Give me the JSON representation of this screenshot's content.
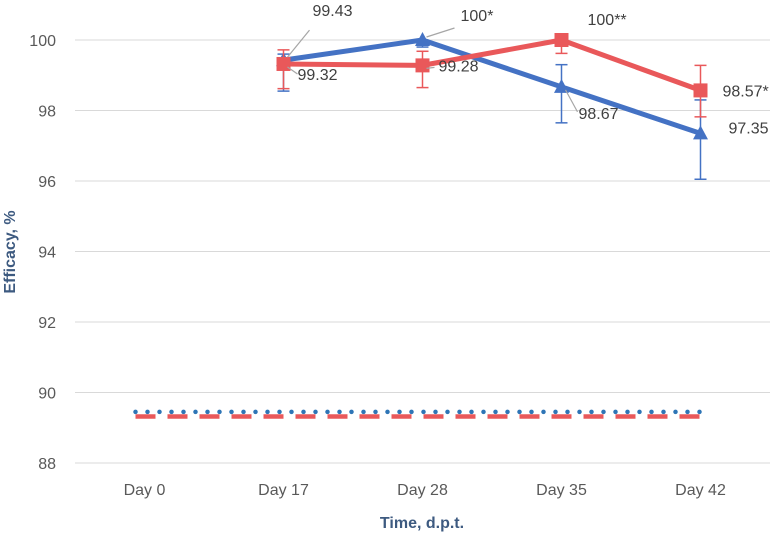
{
  "chart_data": {
    "type": "line",
    "categories": [
      "Day 0",
      "Day 17",
      "Day 28",
      "Day 35",
      "Day 42"
    ],
    "xlabel": "Time, d.p.t.",
    "ylabel": "Efficacy, %",
    "ylim": [
      88,
      100
    ],
    "yticks": [
      88,
      90,
      92,
      94,
      96,
      98,
      100
    ],
    "grid": true,
    "series": [
      {
        "color": "#4472c4",
        "marker": "triangle",
        "points": [
          {
            "x": "Day 17",
            "y": 99.43,
            "err_low": 98.55,
            "err_high": 99.6
          },
          {
            "x": "Day 28",
            "y": 100,
            "err_low": 99.8,
            "err_high": 100
          },
          {
            "x": "Day 35",
            "y": 98.67,
            "err_low": 97.65,
            "err_high": 99.3
          },
          {
            "x": "Day 42",
            "y": 97.35,
            "err_low": 96.05,
            "err_high": 98.3
          }
        ],
        "labels": [
          "99.43",
          "100*",
          "98.67",
          "97.35"
        ]
      },
      {
        "color": "#e9585a",
        "marker": "square",
        "points": [
          {
            "x": "Day 17",
            "y": 99.32,
            "err_low": 98.62,
            "err_high": 99.72
          },
          {
            "x": "Day 28",
            "y": 99.28,
            "err_low": 98.65,
            "err_high": 99.68
          },
          {
            "x": "Day 35",
            "y": 100,
            "err_low": 99.62,
            "err_high": 100
          },
          {
            "x": "Day 42",
            "y": 98.57,
            "err_low": 97.82,
            "err_high": 99.28
          }
        ],
        "labels": [
          "99.32",
          "99.28",
          "100**",
          "98.57*"
        ]
      }
    ],
    "reference_lines": [
      {
        "style": "dotted",
        "color": "#2e75b6",
        "y": 89.45
      },
      {
        "style": "dashed",
        "color": "#e9585a",
        "y": 89.32
      }
    ]
  }
}
